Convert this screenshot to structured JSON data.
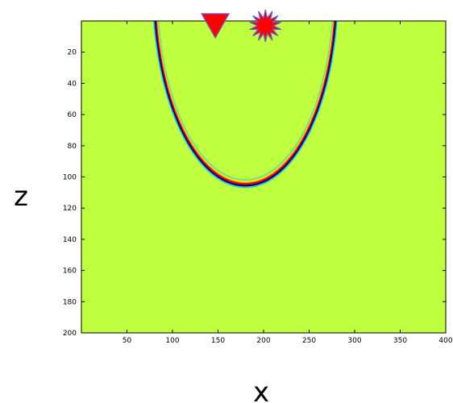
{
  "chart_data": {
    "type": "heatmap",
    "title": "",
    "xlabel": "x",
    "ylabel": "z",
    "x_range": [
      0,
      400
    ],
    "y_range": [
      0,
      200
    ],
    "y_reversed": true,
    "x_ticks": [
      "50",
      "100",
      "150",
      "200",
      "250",
      "300",
      "350",
      "400"
    ],
    "y_ticks": [
      "20",
      "40",
      "60",
      "80",
      "100",
      "120",
      "140",
      "160",
      "180",
      "200"
    ],
    "background_color": "#bfff3f",
    "wavefront": {
      "center_x": 180,
      "center_z": -20,
      "radius_x": 100,
      "radius_z": 125,
      "apex": [
        180,
        105
      ],
      "visible_x_range": [
        75,
        283
      ],
      "colors": [
        "#ff0000",
        "#ffd200",
        "#000080",
        "#00c8ff"
      ]
    },
    "markers": [
      {
        "name": "receiver",
        "shape": "triangle-down",
        "x": 147,
        "color": "#ff0000"
      },
      {
        "name": "source",
        "shape": "star-burst",
        "x": 202,
        "color": "#ff0000"
      }
    ],
    "grid": false
  }
}
